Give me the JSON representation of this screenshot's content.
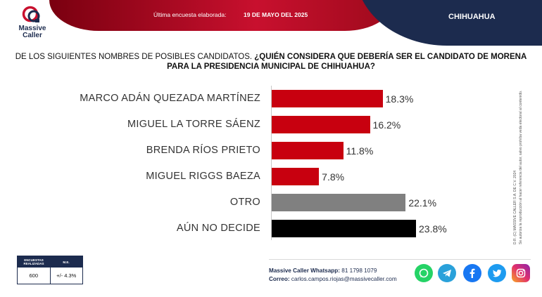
{
  "header": {
    "survey_label": "Última encuesta elaborada:",
    "survey_date": "19 DE MAYO DEL 2025",
    "state": "CHIHUAHUA",
    "brand_line1": "Massive",
    "brand_line2": "Caller"
  },
  "question": {
    "part1": "DE LOS SIGUIENTES NOMBRES DE POSIBLES CANDIDATOS. ",
    "part2": "¿QUIÉN CONSIDERA QUE DEBERÍA SER EL CANDIDATO DE MORENA PARA LA PRESIDENCIA MUNICIPAL DE CHIHUAHUA?"
  },
  "chart_data": {
    "type": "bar",
    "orientation": "horizontal",
    "categories": [
      "MARCO ADÁN QUEZADA MARTÍNEZ",
      "MIGUEL LA TORRE SÁENZ",
      "BRENDA RÍOS PRIETO",
      "MIGUEL RIGGS BAEZA",
      "OTRO",
      "AÚN NO DECIDE"
    ],
    "values": [
      18.3,
      16.2,
      11.8,
      7.8,
      22.1,
      23.8
    ],
    "value_labels": [
      "18.3%",
      "16.2%",
      "11.8%",
      "7.8%",
      "22.1%",
      "23.8%"
    ],
    "colors": [
      "#c8000f",
      "#c8000f",
      "#c8000f",
      "#c8000f",
      "#808080",
      "#000000"
    ],
    "xlim": [
      0,
      23.8
    ],
    "grid": false,
    "legend": "none"
  },
  "side_note": {
    "line1": "D.R. (C) MASSIVE CALLER S.A. DE C.V. 2024",
    "line2": "Se autoriza la reproducción al hacer referencia del autor, salvo prohíba veda electoral al contenido."
  },
  "info_box": {
    "head_left": "ENCUESTAS REALIZADAS",
    "head_right": "M.E.",
    "val_left": "600",
    "val_right": "+/- 4.3%"
  },
  "footer": {
    "whatsapp_label": "Massive Caller Whatsapp:",
    "whatsapp_number": "81 1798 1079",
    "email_label": "Correo:",
    "email_value": "carlos.campos.riojas@massivecaller.com"
  },
  "social_icons": [
    "whatsapp-icon",
    "telegram-icon",
    "facebook-icon",
    "twitter-icon",
    "instagram-icon"
  ],
  "colors": {
    "brand_red": "#c8102e",
    "brand_navy": "#1c2b4e"
  }
}
